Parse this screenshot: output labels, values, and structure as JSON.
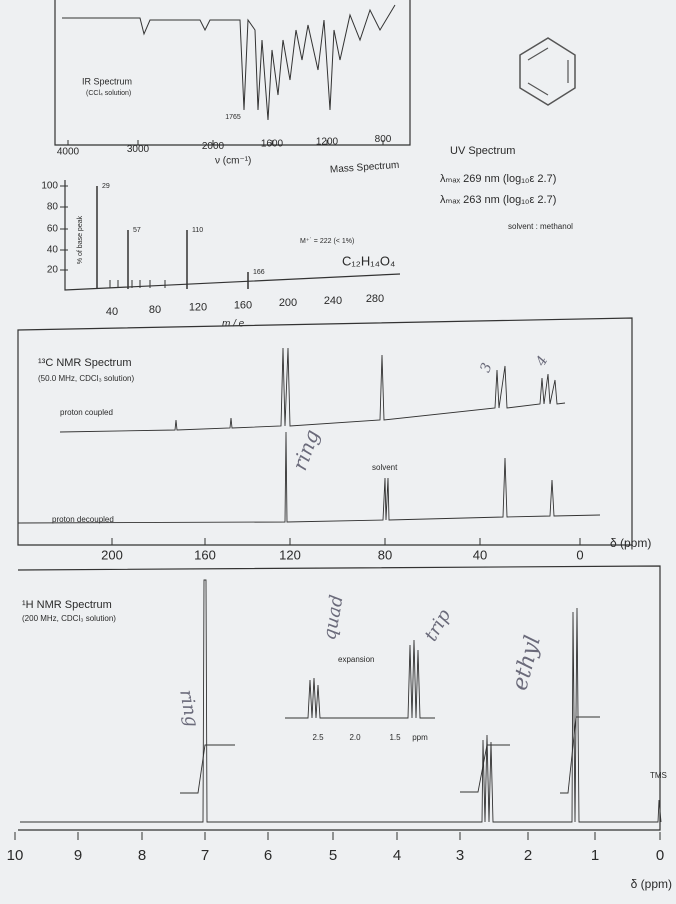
{
  "ir": {
    "title": "IR Spectrum",
    "subtitle": "(CCl₄ solution)",
    "peak_label": "1765",
    "xticks": [
      "4000",
      "3000",
      "2000",
      "1600",
      "1200",
      "800"
    ],
    "xlabel": "ν (cm⁻¹)"
  },
  "mass": {
    "title": "Mass Spectrum",
    "ylabel": "% of base peak",
    "yticks": [
      "100",
      "80",
      "60",
      "40",
      "20"
    ],
    "peak_labels": [
      "29",
      "57",
      "110",
      "166"
    ],
    "molecular_ion": "M⁺˙ = 222 (< 1%)",
    "formula": "C₁₂H₁₄O₄",
    "xticks": [
      "40",
      "80",
      "120",
      "160",
      "200",
      "240",
      "280"
    ],
    "xlabel": "m / e"
  },
  "uv": {
    "title": "UV Spectrum",
    "lines": [
      "λₘₐₓ 269 nm (log₁₀ε 2.7)",
      "λₘₐₓ 263 nm (log₁₀ε 2.7)"
    ],
    "solvent": "solvent : methanol"
  },
  "c13": {
    "title": "¹³C NMR Spectrum",
    "subtitle": "(50.0 MHz, CDCl₃ solution)",
    "coupled": "proton coupled",
    "decoupled": "proton decoupled",
    "solvent": "solvent",
    "xticks": [
      "200",
      "160",
      "120",
      "80",
      "40",
      "0"
    ],
    "xlabel": "δ (ppm)"
  },
  "h1": {
    "title": "¹H NMR Spectrum",
    "subtitle": "(200 MHz, CDCl₃ solution)",
    "expansion": "expansion",
    "inset_ticks": [
      "2.5",
      "2.0",
      "1.5"
    ],
    "inset_unit": "ppm",
    "tms": "TMS",
    "xticks": [
      "10",
      "9",
      "8",
      "7",
      "6",
      "5",
      "4",
      "3",
      "2",
      "1",
      "0"
    ],
    "xlabel": "δ (ppm)"
  },
  "handwriting": [
    "ring",
    "3",
    "4",
    "ring",
    "quad",
    "trip",
    "ethyl"
  ]
}
